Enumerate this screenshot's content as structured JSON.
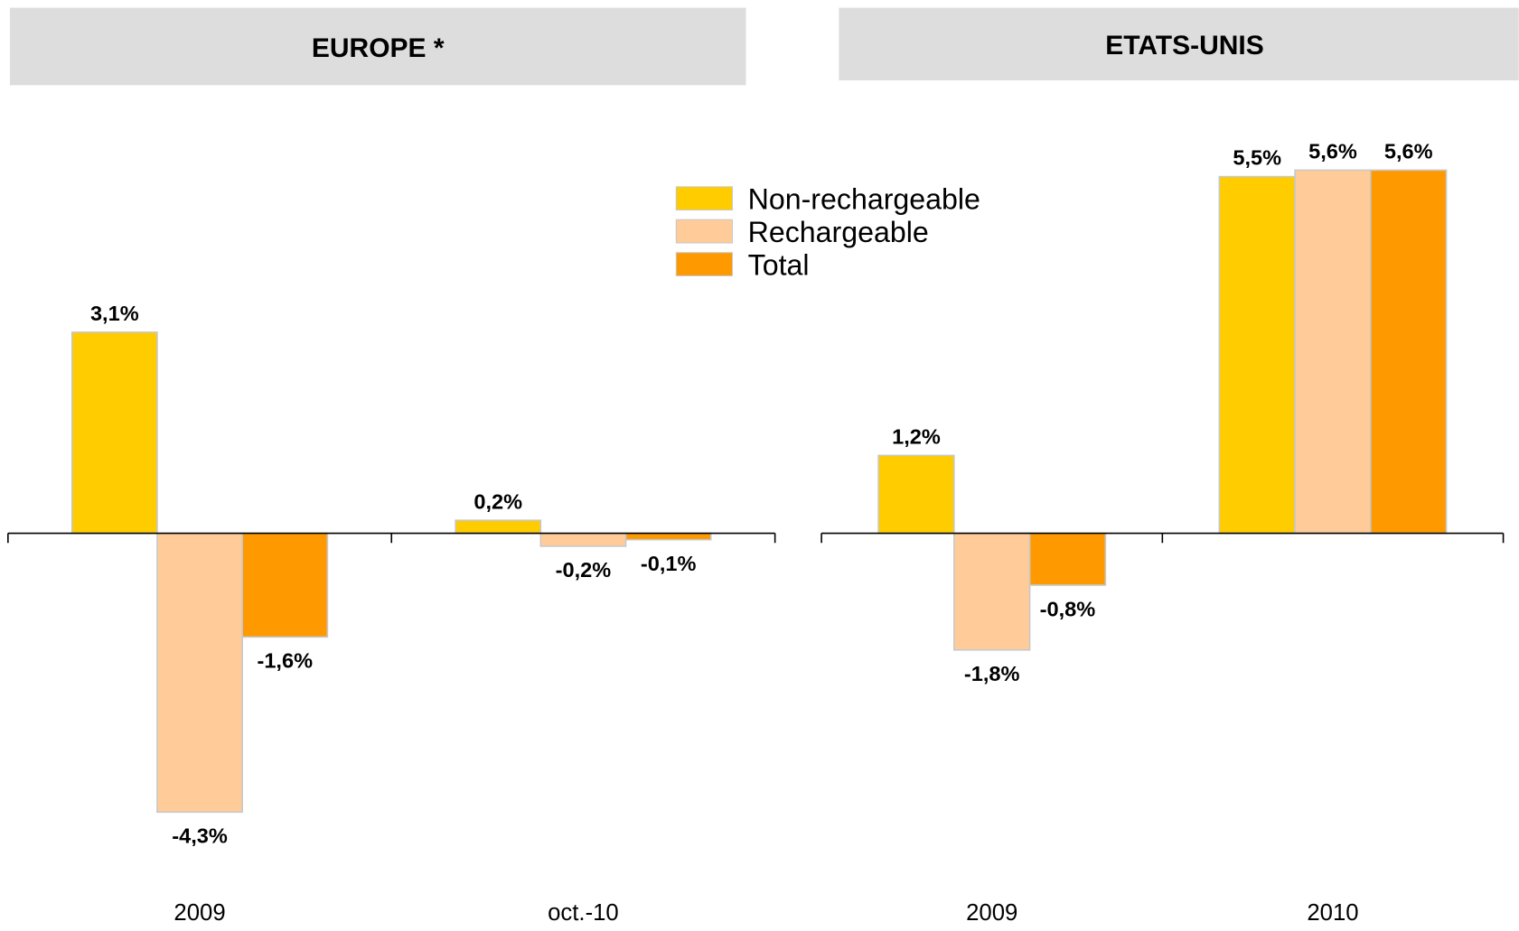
{
  "chart_data": [
    {
      "type": "bar",
      "title": "EUROPE *",
      "categories": [
        "2009",
        "oct.-10"
      ],
      "series": [
        {
          "name": "Non-rechargeable",
          "color": "#ffcc00",
          "values": [
            3.1,
            0.2
          ],
          "value_labels": [
            "3,1%",
            "0,2%"
          ]
        },
        {
          "name": "Rechargeable",
          "color": "#ffcc99",
          "values": [
            -4.3,
            -0.2
          ],
          "value_labels": [
            "-4,3%",
            "-0,2%"
          ]
        },
        {
          "name": "Total",
          "color": "#ff9900",
          "values": [
            -1.6,
            -0.1
          ],
          "value_labels": [
            "-1,6%",
            "-0,1%"
          ]
        }
      ],
      "ylim": [
        -5,
        6.5
      ]
    },
    {
      "type": "bar",
      "title": "ETATS-UNIS",
      "categories": [
        "2009",
        "2010"
      ],
      "series": [
        {
          "color": "#ffcc00",
          "values": [
            1.2,
            5.5
          ],
          "value_labels": [
            "1,2%",
            "5,5%"
          ]
        },
        {
          "color": "#ffcc99",
          "values": [
            -1.8,
            5.6
          ],
          "value_labels": [
            "-1,8%",
            "5,6%"
          ]
        },
        {
          "color": "#ff9900",
          "values": [
            -0.8,
            5.6
          ],
          "value_labels": [
            "-0,8%",
            "5,6%"
          ]
        }
      ],
      "ylim": [
        -5,
        6.5
      ]
    }
  ]
}
